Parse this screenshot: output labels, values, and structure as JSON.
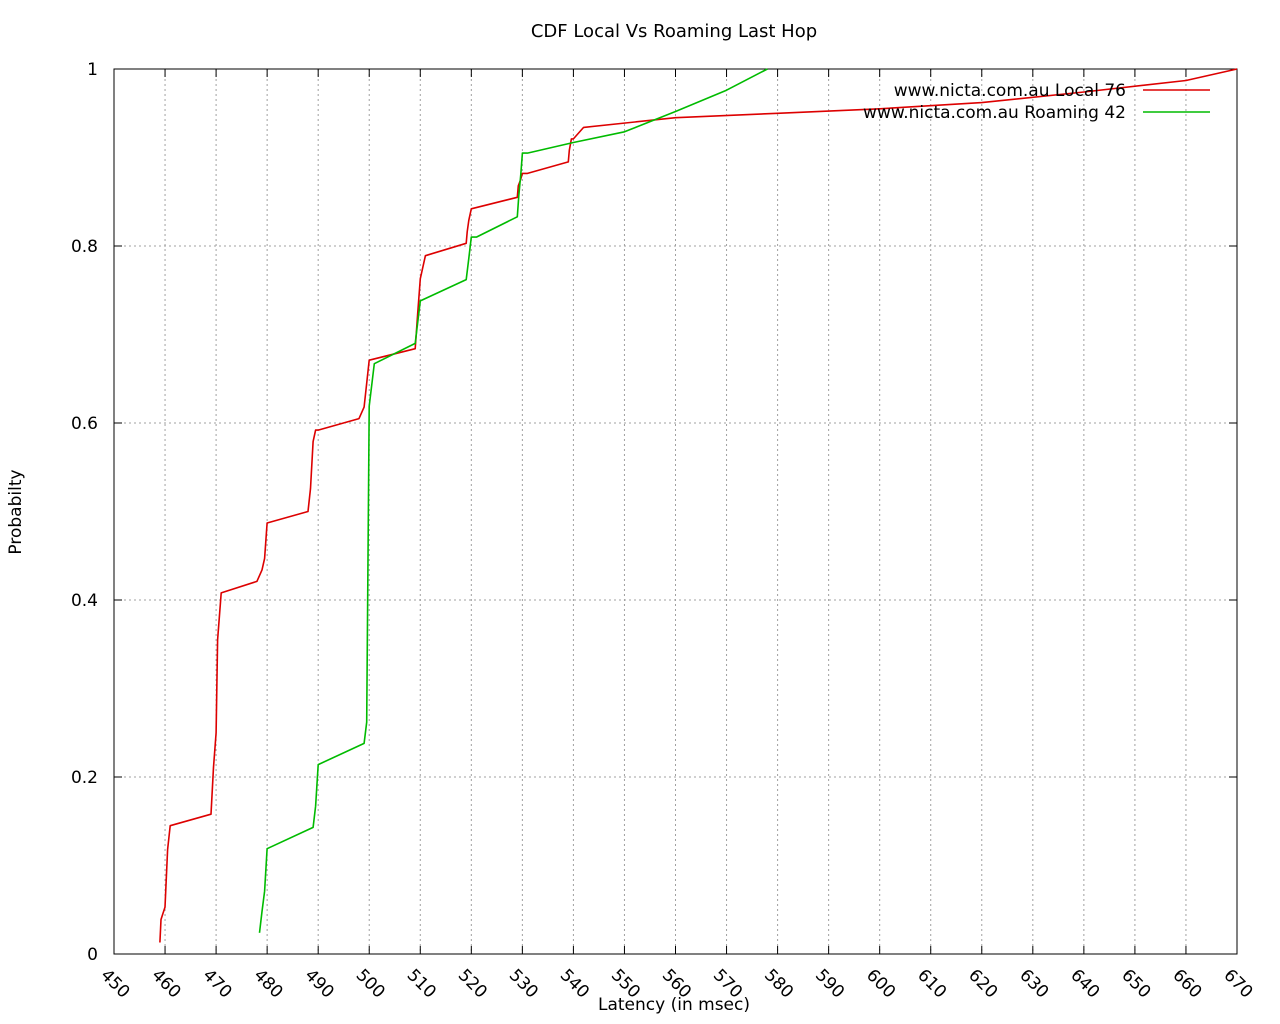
{
  "chart_data": {
    "type": "line",
    "title": "CDF Local Vs Roaming Last Hop",
    "xlabel": "Latency (in msec)",
    "ylabel": "Probabilty",
    "xlim": [
      450,
      670
    ],
    "ylim": [
      0,
      1
    ],
    "x_ticks": [
      "450",
      "460",
      "470",
      "480",
      "490",
      "500",
      "510",
      "520",
      "530",
      "540",
      "550",
      "560",
      "570",
      "580",
      "590",
      "600",
      "610",
      "620",
      "630",
      "640",
      "650",
      "660",
      "670"
    ],
    "y_ticks": [
      "0",
      "0.2",
      "0.4",
      "0.6",
      "0.8",
      "1"
    ],
    "grid": true,
    "legend_position": "top-right",
    "series": [
      {
        "name": "www.nicta.com.au Local 76",
        "color": "#dd0000",
        "x": [
          459,
          459.2,
          460,
          460.5,
          461,
          469,
          469.5,
          470,
          470.3,
          471,
          478,
          479,
          479.5,
          480,
          488,
          488.5,
          489,
          489.5,
          490,
          498,
          499,
          500,
          509,
          509.5,
          510,
          511,
          519,
          519.2,
          519.5,
          520,
          529,
          529.2,
          529.6,
          530,
          531,
          539,
          539.2,
          539.6,
          540,
          542,
          560,
          580,
          600,
          620,
          640,
          660,
          670
        ],
        "y": [
          0.013,
          0.039,
          0.053,
          0.118,
          0.145,
          0.158,
          0.211,
          0.25,
          0.355,
          0.408,
          0.421,
          0.434,
          0.447,
          0.487,
          0.5,
          0.526,
          0.579,
          0.592,
          0.592,
          0.605,
          0.618,
          0.671,
          0.684,
          0.724,
          0.763,
          0.789,
          0.803,
          0.816,
          0.829,
          0.842,
          0.855,
          0.868,
          0.874,
          0.882,
          0.882,
          0.895,
          0.908,
          0.921,
          0.921,
          0.934,
          0.945,
          0.95,
          0.955,
          0.962,
          0.974,
          0.987,
          1.0
        ]
      },
      {
        "name": "www.nicta.com.au Roaming 42",
        "color": "#00bb00",
        "x": [
          478.5,
          479,
          479.5,
          480,
          489,
          489.5,
          490,
          499,
          499.5,
          499.8,
          500,
          501,
          509,
          510,
          519,
          519.5,
          520,
          521,
          529,
          529.3,
          529.7,
          530,
          531,
          540,
          550,
          560,
          570,
          578
        ],
        "y": [
          0.024,
          0.048,
          0.071,
          0.119,
          0.143,
          0.167,
          0.214,
          0.238,
          0.262,
          0.476,
          0.619,
          0.667,
          0.69,
          0.738,
          0.762,
          0.786,
          0.81,
          0.81,
          0.833,
          0.857,
          0.881,
          0.905,
          0.905,
          0.917,
          0.929,
          0.952,
          0.976,
          1.0
        ]
      }
    ]
  }
}
